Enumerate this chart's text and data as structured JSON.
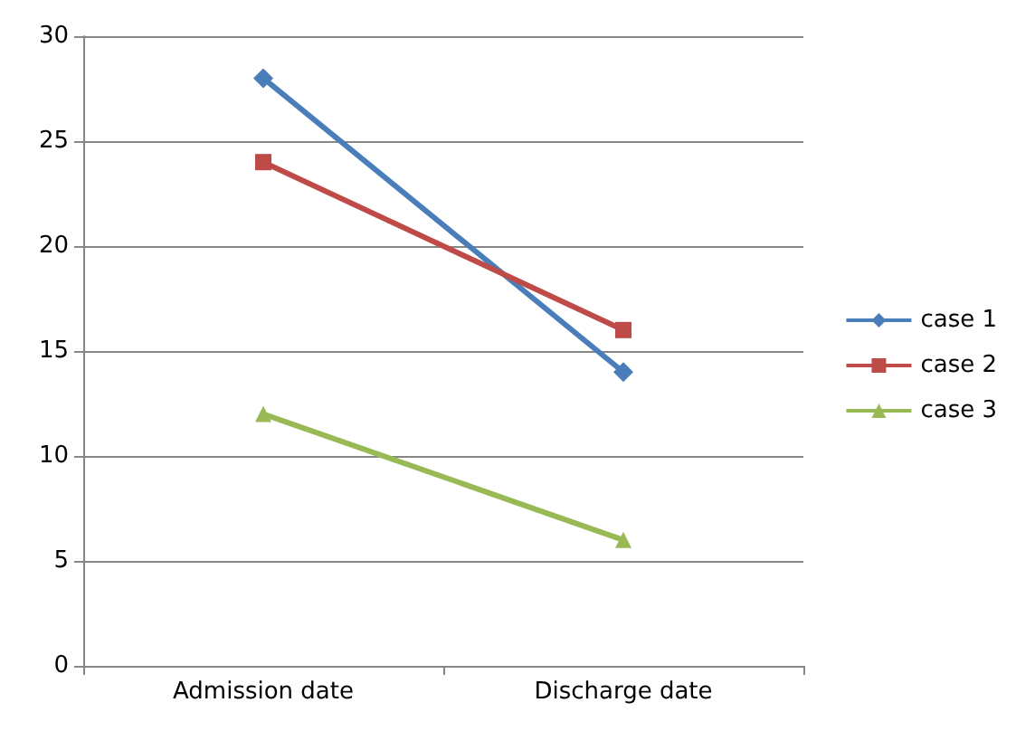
{
  "chart_data": {
    "type": "line",
    "categories": [
      "Admission date",
      "Discharge date"
    ],
    "series": [
      {
        "name": "case 1",
        "color": "#4a7ebb",
        "marker": "diamond",
        "values": [
          28,
          14
        ]
      },
      {
        "name": "case 2",
        "color": "#be4b48",
        "marker": "square",
        "values": [
          24,
          16
        ]
      },
      {
        "name": "case 3",
        "color": "#98b954",
        "marker": "triangle",
        "values": [
          12,
          6
        ]
      }
    ],
    "ylim": [
      0,
      30
    ],
    "yticks": [
      0,
      5,
      10,
      15,
      20,
      25,
      30
    ],
    "grid": "y",
    "legend": "right"
  }
}
